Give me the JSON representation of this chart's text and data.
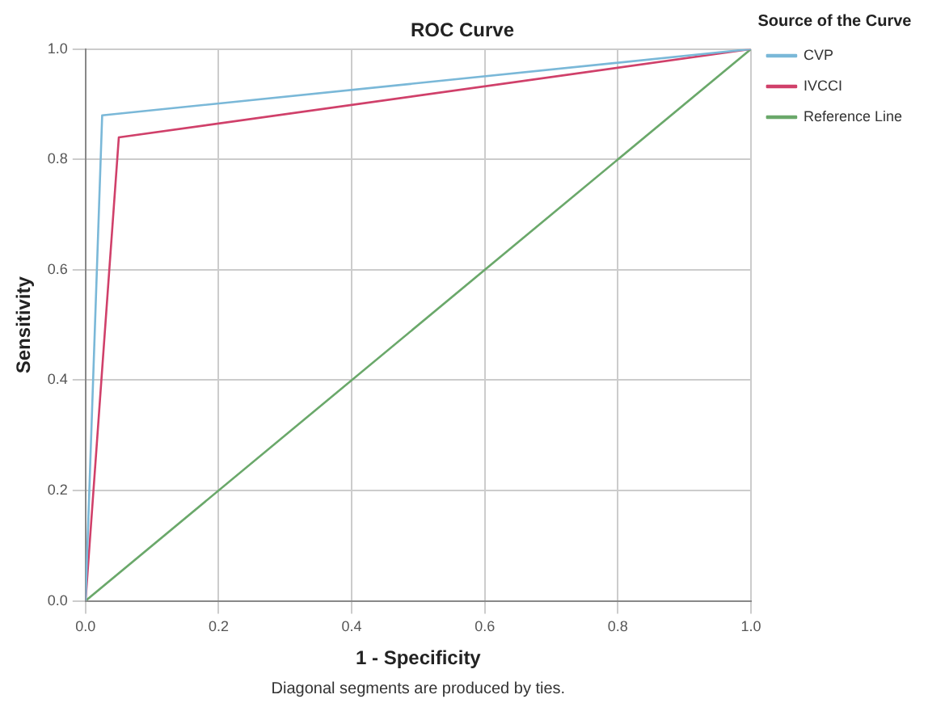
{
  "chart_data": {
    "type": "line",
    "title": "ROC Curve",
    "xlabel": "1 - Specificity",
    "ylabel": "Sensitivity",
    "legend_title": "Source of the Curve",
    "series": [
      {
        "name": "CVP",
        "color": "#7ab8d8",
        "x": [
          0,
          0.025,
          1
        ],
        "values": [
          0,
          0.88,
          1
        ]
      },
      {
        "name": "IVCCI",
        "color": "#d0406a",
        "x": [
          0,
          0.05,
          1
        ],
        "values": [
          0,
          0.84,
          1
        ]
      },
      {
        "name": "Reference Line",
        "color": "#6aa86a",
        "x": [
          0,
          1
        ],
        "values": [
          0,
          1
        ]
      }
    ],
    "xlim": [
      0,
      1
    ],
    "ylim": [
      0,
      1
    ],
    "xticks": [
      {
        "value": 0,
        "label": "0.0"
      },
      {
        "value": 0.2,
        "label": "0.2"
      },
      {
        "value": 0.4,
        "label": "0.4"
      },
      {
        "value": 0.6,
        "label": "0.6"
      },
      {
        "value": 0.8,
        "label": "0.8"
      },
      {
        "value": 1,
        "label": "1.0"
      }
    ],
    "yticks": [
      {
        "value": 0,
        "label": "0.0"
      },
      {
        "value": 0.2,
        "label": "0.2"
      },
      {
        "value": 0.4,
        "label": "0.4"
      },
      {
        "value": 0.6,
        "label": "0.6"
      },
      {
        "value": 0.8,
        "label": "0.8"
      },
      {
        "value": 1,
        "label": "1.0"
      }
    ],
    "grid": true,
    "legend": "right",
    "marker": "none",
    "line_style": "solid",
    "annotations": [
      "Diagonal segments are produced by ties."
    ]
  }
}
